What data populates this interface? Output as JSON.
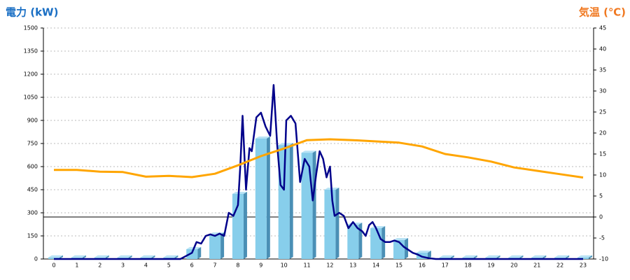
{
  "chart_data": {
    "type": "bar",
    "ylabel": "電力 (kW)",
    "y2label": "気温 (℃)",
    "categories": [
      "0",
      "1",
      "2",
      "3",
      "4",
      "5",
      "6",
      "7",
      "8",
      "9",
      "10",
      "11",
      "12",
      "13",
      "14",
      "15",
      "16",
      "17",
      "18",
      "19",
      "20",
      "21",
      "22",
      "23"
    ],
    "values": [
      10,
      10,
      10,
      10,
      10,
      10,
      64,
      159,
      423,
      782,
      740,
      690,
      450,
      223,
      200,
      123,
      41,
      10,
      10,
      10,
      10,
      10,
      10,
      10
    ],
    "color": "#87ceeb",
    "ylim": [
      0,
      1500
    ],
    "yticks": [
      0,
      150,
      300,
      450,
      600,
      750,
      900,
      1050,
      1200,
      1350,
      1500
    ],
    "y2lim": [
      -10,
      45
    ],
    "y2ticks": [
      -10,
      -5,
      0,
      5,
      10,
      15,
      20,
      25,
      30,
      35,
      40,
      45
    ],
    "grid": true,
    "series": [
      {
        "type": "line",
        "color": "#00008b",
        "x": [
          0,
          5.5,
          6.0,
          6.2,
          6.4,
          6.6,
          6.8,
          7.0,
          7.2,
          7.4,
          7.6,
          7.8,
          8.0,
          8.1,
          8.2,
          8.35,
          8.5,
          8.6,
          8.8,
          9.0,
          9.2,
          9.4,
          9.55,
          9.7,
          9.85,
          10.0,
          10.1,
          10.3,
          10.5,
          10.7,
          10.9,
          11.1,
          11.25,
          11.4,
          11.55,
          11.7,
          11.85,
          12.0,
          12.1,
          12.2,
          12.4,
          12.6,
          12.8,
          13.0,
          13.2,
          13.4,
          13.55,
          13.7,
          13.85,
          14.0,
          14.2,
          14.4,
          14.6,
          14.8,
          15.0,
          15.2,
          15.4,
          15.6,
          15.8,
          16.0,
          16.3,
          16.6,
          23
        ],
        "values": [
          0,
          0,
          40,
          110,
          100,
          150,
          160,
          150,
          165,
          150,
          300,
          280,
          350,
          600,
          930,
          450,
          720,
          700,
          920,
          950,
          860,
          800,
          1130,
          750,
          480,
          450,
          900,
          930,
          880,
          500,
          650,
          600,
          380,
          550,
          700,
          650,
          530,
          600,
          380,
          280,
          300,
          280,
          200,
          240,
          200,
          180,
          150,
          220,
          240,
          200,
          130,
          110,
          110,
          120,
          110,
          80,
          60,
          40,
          30,
          15,
          5,
          0,
          0
        ]
      },
      {
        "type": "line",
        "axis": "y2",
        "color": "#ffa500",
        "values": [
          11.2,
          11.2,
          10.8,
          10.7,
          9.6,
          9.8,
          9.5,
          10.3,
          12.3,
          14.5,
          16.3,
          18.3,
          18.5,
          18.3,
          18.0,
          17.7,
          16.8,
          15.0,
          14.2,
          13.2,
          11.8,
          11.0,
          10.2,
          9.4
        ]
      }
    ]
  }
}
